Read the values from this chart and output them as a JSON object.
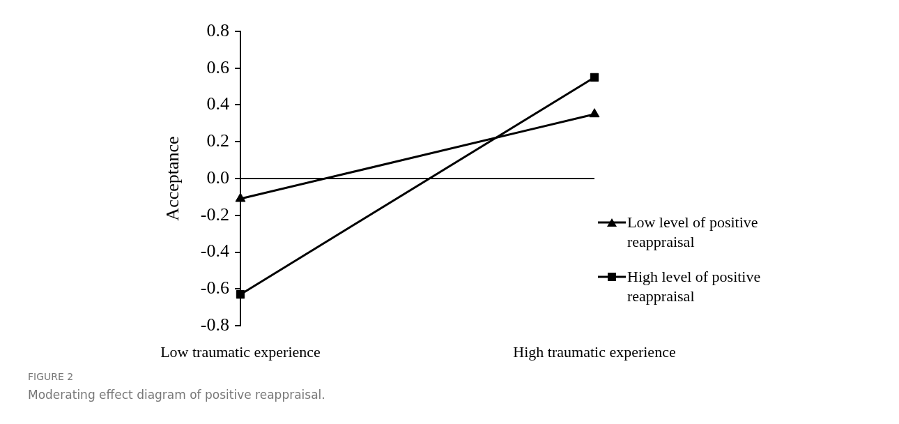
{
  "chart_data": {
    "type": "line",
    "ylabel": "Acceptance",
    "categories": [
      "Low traumatic experience",
      "High traumatic experience"
    ],
    "series": [
      {
        "name": "Low level of positive reappraisal",
        "color": "#000000",
        "marker": "triangle",
        "values": [
          -0.11,
          0.35
        ]
      },
      {
        "name": "High level of positive reappraisal",
        "color": "#000000",
        "marker": "square",
        "values": [
          -0.63,
          0.55
        ]
      }
    ],
    "ylim": [
      -0.8,
      0.8
    ],
    "yticks": [
      {
        "value": -0.8,
        "label": "-0.8"
      },
      {
        "value": -0.6,
        "label": "-0.6"
      },
      {
        "value": -0.4,
        "label": "-0.4"
      },
      {
        "value": -0.2,
        "label": "-0.2"
      },
      {
        "value": 0,
        "label": "0.0"
      },
      {
        "value": 0.2,
        "label": "0.2"
      },
      {
        "value": 0.4,
        "label": "0.4"
      },
      {
        "value": 0.6,
        "label": "0.6"
      },
      {
        "value": 0.8,
        "label": "0.8"
      }
    ],
    "ref_lines": [
      {
        "axis": "y",
        "value": 0,
        "color": "#000000",
        "line_style": "solid"
      }
    ],
    "grid": false,
    "legend": "right",
    "line_style": "solid",
    "annotations": [
      "FIGURE 2",
      "Moderating effect diagram of positive reappraisal."
    ]
  }
}
